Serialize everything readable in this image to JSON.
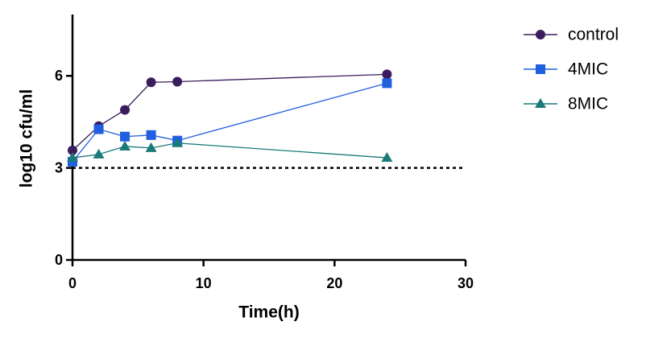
{
  "chart_data": {
    "type": "line",
    "x_label": "Time(h)",
    "y_label": "log10 cfu/ml",
    "x": [
      0,
      2,
      4,
      6,
      8,
      24
    ],
    "series": [
      {
        "name": "control",
        "color": "#3a1d5c",
        "marker": "circle",
        "values": [
          3.57,
          4.36,
          4.89,
          5.79,
          5.81,
          6.05
        ]
      },
      {
        "name": "4MIC",
        "color": "#1f5fe0",
        "marker": "square",
        "values": [
          3.2,
          4.26,
          4.02,
          4.07,
          3.89,
          5.76
        ]
      },
      {
        "name": "8MIC",
        "color": "#1a7a7a",
        "marker": "triangle",
        "values": [
          3.33,
          3.44,
          3.7,
          3.65,
          3.81,
          3.33
        ]
      }
    ],
    "xlim": [
      0,
      30
    ],
    "xticks": [
      0,
      10,
      20,
      30
    ],
    "ylim": [
      0,
      8
    ],
    "yticks": [
      0,
      3,
      6
    ],
    "reference_line": 3,
    "legend": "right"
  }
}
